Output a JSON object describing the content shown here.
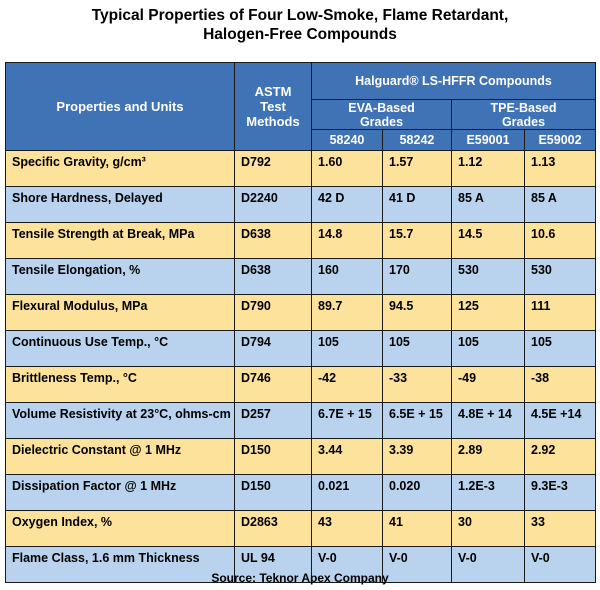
{
  "title": {
    "line1": "Typical Properties of Four Low-Smoke, Flame Retardant,",
    "line2": "Halogen-Free Compounds"
  },
  "header": {
    "properties_label": "Properties and Units",
    "astm_label": "ASTM Test Methods",
    "group_title": "Halguard® LS-HFFR Compounds",
    "eva_label": "EVA-Based Grades",
    "tpe_label": "TPE-Based Grades",
    "codes": [
      "58240",
      "58242",
      "E59001",
      "E59002"
    ]
  },
  "rows": [
    {
      "property": "Specific Gravity, g/cm³",
      "astm": "D792",
      "values": [
        "1.60",
        "1.57",
        "1.12",
        "1.13"
      ]
    },
    {
      "property": "Shore Hardness, Delayed",
      "astm": "D2240",
      "values": [
        "42 D",
        "41 D",
        "85 A",
        "85 A"
      ]
    },
    {
      "property": "Tensile Strength at Break, MPa",
      "astm": "D638",
      "values": [
        "14.8",
        "15.7",
        "14.5",
        "10.6"
      ]
    },
    {
      "property": "Tensile Elongation, %",
      "astm": "D638",
      "values": [
        "160",
        "170",
        "530",
        "530"
      ]
    },
    {
      "property": "Flexural Modulus, MPa",
      "astm": "D790",
      "values": [
        "89.7",
        "94.5",
        "125",
        "111"
      ]
    },
    {
      "property": "Continuous Use Temp., °C",
      "astm": "D794",
      "values": [
        "105",
        "105",
        "105",
        "105"
      ]
    },
    {
      "property": "Brittleness Temp., °C",
      "astm": "D746",
      "values": [
        "-42",
        "-33",
        "-49",
        "-38"
      ]
    },
    {
      "property": "Volume Resistivity at 23°C, ohms-cm",
      "astm": "D257",
      "values": [
        "6.7E + 15",
        "6.5E + 15",
        "4.8E + 14",
        "4.5E +14"
      ]
    },
    {
      "property": "Dielectric Constant @ 1 MHz",
      "astm": "D150",
      "values": [
        "3.44",
        "3.39",
        "2.89",
        "2.92"
      ]
    },
    {
      "property": "Dissipation Factor @ 1 MHz",
      "astm": "D150",
      "values": [
        "0.021",
        "0.020",
        "1.2E-3",
        "9.3E-3"
      ]
    },
    {
      "property": "Oxygen Index, %",
      "astm": "D2863",
      "values": [
        "43",
        "41",
        "30",
        "33"
      ]
    },
    {
      "property": "Flame Class, 1.6 mm Thickness",
      "astm": "UL 94",
      "values": [
        "V-0",
        "V-0",
        "V-0",
        "V-0"
      ]
    }
  ],
  "source": "Source: Teknor Apex Company",
  "colors": {
    "header_blue": "#3f73b6",
    "row_yellow": "#fde29c",
    "row_blue": "#b9d3ee"
  }
}
